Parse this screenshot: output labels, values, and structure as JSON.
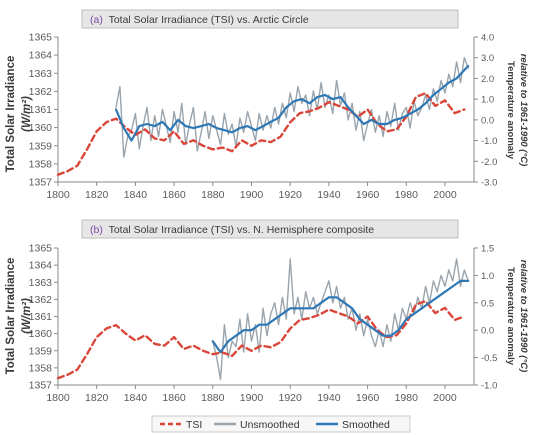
{
  "colors": {
    "tsi": "#d9463a",
    "unsmoothed": "#9aa4ac",
    "smoothed": "#2f78b6",
    "axis": "#8a8a8a",
    "title_box": "#e6e6e6"
  },
  "legend": {
    "tsi": "TSI",
    "unsmoothed": "Unsmoothed",
    "smoothed": "Smoothed"
  },
  "chart_data": [
    {
      "type": "line",
      "panel": "(a)",
      "title": "Total Solar Irradiance (TSI) vs. Arctic Circle",
      "ylabel": "Total Solar Irradiance",
      "ylabel_units": "(W/m²)",
      "y2label": "Temperature anomaly",
      "y2label_sub": "relative to 1961-1990 (°C)",
      "xlim": [
        1800,
        2015
      ],
      "ylim": [
        1357,
        1365
      ],
      "y2lim": [
        -3,
        4
      ],
      "xticks": [
        "1800",
        "1820",
        "1840",
        "1860",
        "1880",
        "1900",
        "1920",
        "1940",
        "1960",
        "1980",
        "2000"
      ],
      "yticks": [
        "1357",
        "1358",
        "1359",
        "1360",
        "1361",
        "1362",
        "1363",
        "1364",
        "1365"
      ],
      "y2ticks": [
        "-3.0",
        "-2.0",
        "-1.0",
        "0.0",
        "1.0",
        "2.0",
        "3.0",
        "4.0"
      ],
      "grid": false,
      "series": [
        {
          "name": "TSI",
          "axis": "left",
          "x": [
            1800,
            1805,
            1810,
            1815,
            1820,
            1825,
            1830,
            1835,
            1840,
            1845,
            1850,
            1855,
            1860,
            1865,
            1870,
            1875,
            1880,
            1885,
            1890,
            1895,
            1900,
            1905,
            1910,
            1915,
            1920,
            1925,
            1930,
            1935,
            1940,
            1945,
            1950,
            1955,
            1960,
            1965,
            1970,
            1975,
            1980,
            1985,
            1990,
            1995,
            2000,
            2005,
            2010
          ],
          "y": [
            1357.4,
            1357.6,
            1357.9,
            1358.8,
            1359.8,
            1360.3,
            1360.5,
            1360.0,
            1359.6,
            1359.9,
            1359.4,
            1359.3,
            1359.8,
            1359.1,
            1359.3,
            1359.0,
            1358.8,
            1358.9,
            1358.7,
            1359.3,
            1359.0,
            1359.3,
            1359.2,
            1359.5,
            1360.3,
            1360.8,
            1360.9,
            1361.1,
            1361.4,
            1361.2,
            1361.0,
            1360.6,
            1361.0,
            1360.2,
            1359.8,
            1359.9,
            1360.6,
            1361.7,
            1361.9,
            1361.2,
            1361.5,
            1360.8,
            1361.0
          ]
        },
        {
          "name": "Unsmoothed",
          "axis": "right",
          "x": [
            1830,
            1832,
            1834,
            1836,
            1838,
            1840,
            1842,
            1844,
            1846,
            1848,
            1850,
            1852,
            1854,
            1856,
            1858,
            1860,
            1862,
            1864,
            1866,
            1868,
            1870,
            1872,
            1874,
            1876,
            1878,
            1880,
            1882,
            1884,
            1886,
            1888,
            1890,
            1892,
            1894,
            1896,
            1898,
            1900,
            1902,
            1904,
            1906,
            1908,
            1910,
            1912,
            1914,
            1916,
            1918,
            1920,
            1922,
            1924,
            1926,
            1928,
            1930,
            1932,
            1934,
            1936,
            1938,
            1940,
            1942,
            1944,
            1946,
            1948,
            1950,
            1952,
            1954,
            1956,
            1958,
            1960,
            1962,
            1964,
            1966,
            1968,
            1970,
            1972,
            1974,
            1976,
            1978,
            1980,
            1982,
            1984,
            1986,
            1988,
            1990,
            1992,
            1994,
            1996,
            1998,
            2000,
            2002,
            2004,
            2006,
            2008,
            2010,
            2012
          ],
          "y": [
            0.6,
            1.6,
            -1.8,
            -0.8,
            -0.5,
            0.3,
            -1.4,
            -0.3,
            0.6,
            -1.0,
            0.2,
            -0.8,
            0.5,
            -0.3,
            -1.1,
            0.4,
            -0.6,
            0.8,
            -1.2,
            -0.2,
            0.6,
            -1.5,
            -0.6,
            0.4,
            -0.9,
            0.2,
            -0.5,
            -1.2,
            0.3,
            -0.7,
            -0.2,
            -1.3,
            0.1,
            -0.6,
            0.4,
            -0.3,
            -1.0,
            0.3,
            -0.5,
            0.2,
            -0.4,
            0.6,
            -0.2,
            0.8,
            0.1,
            1.3,
            0.4,
            1.6,
            0.8,
            1.2,
            0.2,
            1.4,
            0.5,
            1.8,
            0.6,
            1.2,
            0.3,
            1.9,
            0.7,
            1.3,
            0.0,
            0.8,
            -0.5,
            0.4,
            -1.0,
            -0.2,
            0.5,
            -0.6,
            0.2,
            -0.8,
            0.4,
            -0.3,
            0.8,
            -0.5,
            0.3,
            0.6,
            -0.4,
            0.9,
            0.2,
            0.6,
            1.2,
            0.5,
            1.5,
            0.9,
            1.9,
            1.3,
            2.2,
            1.6,
            2.8,
            1.8,
            3.0,
            2.5
          ]
        },
        {
          "name": "Smoothed",
          "axis": "right",
          "x": [
            1830,
            1834,
            1838,
            1842,
            1846,
            1850,
            1854,
            1858,
            1862,
            1866,
            1870,
            1874,
            1878,
            1882,
            1886,
            1890,
            1894,
            1898,
            1902,
            1906,
            1910,
            1914,
            1918,
            1922,
            1926,
            1930,
            1934,
            1938,
            1942,
            1946,
            1950,
            1954,
            1958,
            1962,
            1966,
            1970,
            1974,
            1978,
            1982,
            1986,
            1990,
            1994,
            1998,
            2002,
            2006,
            2010,
            2012
          ],
          "y": [
            0.5,
            -0.4,
            -1.0,
            -0.3,
            -0.2,
            -0.3,
            -0.1,
            -0.5,
            0.0,
            -0.3,
            -0.4,
            -0.3,
            -0.2,
            -0.4,
            -0.5,
            -0.6,
            -0.4,
            -0.3,
            -0.5,
            -0.3,
            -0.1,
            0.1,
            0.6,
            0.9,
            1.0,
            0.8,
            1.1,
            1.2,
            1.0,
            1.1,
            0.6,
            0.2,
            -0.2,
            0.0,
            -0.2,
            -0.2,
            0.0,
            0.1,
            0.3,
            0.5,
            0.8,
            1.2,
            1.5,
            1.8,
            2.0,
            2.4,
            2.6
          ]
        }
      ]
    },
    {
      "type": "line",
      "panel": "(b)",
      "title": "Total Solar Irradiance (TSI) vs. N. Hemisphere composite",
      "ylabel": "Total Solar Irradiance",
      "ylabel_units": "(W/m²)",
      "y2label": "Temperature anomaly",
      "y2label_sub": "relative to 1961-1990 (°C)",
      "xlim": [
        1800,
        2015
      ],
      "ylim": [
        1357,
        1365
      ],
      "y2lim": [
        -1.0,
        1.5
      ],
      "xticks": [
        "1800",
        "1820",
        "1840",
        "1860",
        "1880",
        "1900",
        "1920",
        "1940",
        "1960",
        "1980",
        "2000"
      ],
      "yticks": [
        "1357",
        "1358",
        "1359",
        "1360",
        "1361",
        "1362",
        "1363",
        "1364",
        "1365"
      ],
      "y2ticks": [
        "-1.0",
        "-0.5",
        "0.0",
        "0.5",
        "1.0",
        "1.5"
      ],
      "grid": false,
      "series": [
        {
          "name": "TSI",
          "axis": "left",
          "x": [
            1800,
            1805,
            1810,
            1815,
            1820,
            1825,
            1830,
            1835,
            1840,
            1845,
            1850,
            1855,
            1860,
            1865,
            1870,
            1875,
            1880,
            1885,
            1890,
            1895,
            1900,
            1905,
            1910,
            1915,
            1920,
            1925,
            1930,
            1935,
            1940,
            1945,
            1950,
            1955,
            1960,
            1965,
            1970,
            1975,
            1980,
            1985,
            1990,
            1995,
            2000,
            2005,
            2010
          ],
          "y": [
            1357.4,
            1357.6,
            1357.9,
            1358.8,
            1359.8,
            1360.3,
            1360.5,
            1360.0,
            1359.6,
            1359.9,
            1359.4,
            1359.3,
            1359.8,
            1359.1,
            1359.3,
            1359.0,
            1358.8,
            1358.9,
            1358.7,
            1359.3,
            1359.0,
            1359.3,
            1359.2,
            1359.5,
            1360.3,
            1360.8,
            1360.9,
            1361.1,
            1361.4,
            1361.2,
            1361.0,
            1360.6,
            1361.0,
            1360.2,
            1359.8,
            1359.9,
            1360.6,
            1361.7,
            1361.9,
            1361.2,
            1361.5,
            1360.8,
            1361.0
          ]
        },
        {
          "name": "Unsmoothed",
          "axis": "right",
          "x": [
            1880,
            1882,
            1884,
            1886,
            1888,
            1890,
            1892,
            1894,
            1896,
            1898,
            1900,
            1902,
            1904,
            1906,
            1908,
            1910,
            1912,
            1914,
            1916,
            1918,
            1920,
            1922,
            1924,
            1926,
            1928,
            1930,
            1932,
            1934,
            1936,
            1938,
            1940,
            1942,
            1944,
            1946,
            1948,
            1950,
            1952,
            1954,
            1956,
            1958,
            1960,
            1962,
            1964,
            1966,
            1968,
            1970,
            1972,
            1974,
            1976,
            1978,
            1980,
            1982,
            1984,
            1986,
            1988,
            1990,
            1992,
            1994,
            1996,
            1998,
            2000,
            2002,
            2004,
            2006,
            2008,
            2010,
            2012
          ],
          "y": [
            -0.2,
            -0.5,
            -0.9,
            0.1,
            -0.5,
            -0.2,
            -0.3,
            0.2,
            -0.4,
            0.3,
            -0.2,
            0.1,
            -0.4,
            0.4,
            -0.1,
            0.3,
            0.5,
            0.1,
            0.6,
            0.2,
            1.3,
            0.3,
            0.6,
            0.2,
            0.7,
            0.4,
            0.6,
            0.3,
            0.5,
            0.7,
            0.9,
            0.5,
            0.8,
            0.4,
            0.6,
            0.2,
            0.4,
            0.0,
            0.3,
            -0.1,
            0.2,
            -0.1,
            -0.3,
            0.0,
            -0.3,
            0.1,
            -0.2,
            0.3,
            0.0,
            0.4,
            0.2,
            0.5,
            0.3,
            0.6,
            0.4,
            0.8,
            0.5,
            0.9,
            0.7,
            1.0,
            0.8,
            1.1,
            0.9,
            1.3,
            0.8,
            1.1,
            0.9
          ]
        },
        {
          "name": "Smoothed",
          "axis": "right",
          "x": [
            1880,
            1884,
            1888,
            1892,
            1896,
            1900,
            1904,
            1908,
            1912,
            1916,
            1920,
            1924,
            1928,
            1932,
            1936,
            1940,
            1944,
            1948,
            1952,
            1956,
            1960,
            1964,
            1968,
            1972,
            1976,
            1980,
            1984,
            1988,
            1992,
            1996,
            2000,
            2004,
            2008,
            2012
          ],
          "y": [
            -0.2,
            -0.4,
            -0.2,
            -0.1,
            0.0,
            0.0,
            0.1,
            0.1,
            0.2,
            0.3,
            0.4,
            0.4,
            0.4,
            0.4,
            0.5,
            0.6,
            0.6,
            0.5,
            0.4,
            0.2,
            0.1,
            0.0,
            -0.1,
            -0.1,
            0.0,
            0.2,
            0.3,
            0.4,
            0.5,
            0.6,
            0.7,
            0.8,
            0.9,
            0.9
          ]
        }
      ]
    }
  ]
}
